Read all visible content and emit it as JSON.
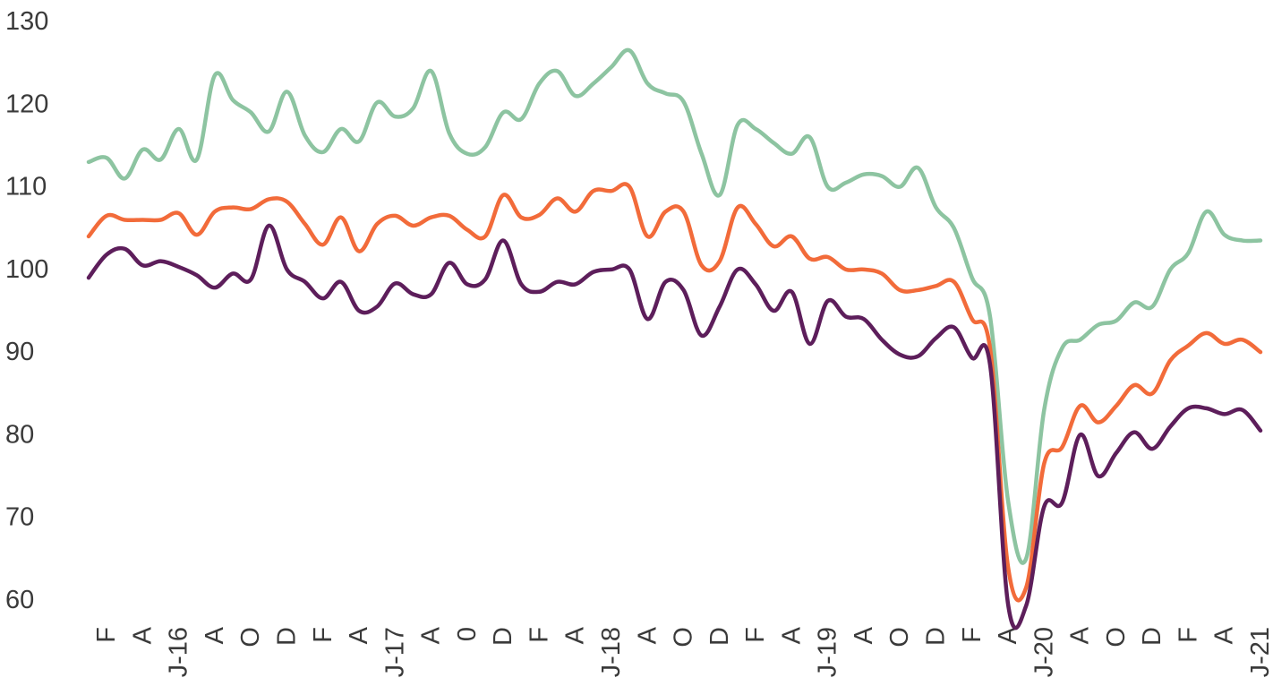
{
  "chart_data": {
    "type": "line",
    "title": "",
    "xlabel": "",
    "ylabel": "",
    "ylim": [
      60,
      130
    ],
    "yticks": [
      60,
      70,
      80,
      90,
      100,
      110,
      120,
      130
    ],
    "grid": false,
    "legend": "none",
    "x_tick_labels": [
      "F",
      "A",
      "J-16",
      "A",
      "O",
      "D",
      "F",
      "A",
      "J-17",
      "A",
      "0",
      "D",
      "F",
      "A",
      "J-18",
      "A",
      "O",
      "D",
      "F",
      "A",
      "J-19",
      "A",
      "O",
      "D",
      "F",
      "A",
      "J-20",
      "A",
      "O",
      "D",
      "F",
      "A",
      "J-21"
    ],
    "x_tick_months": [
      1,
      3,
      5,
      7,
      9,
      11,
      13,
      15,
      17,
      19,
      21,
      23,
      25,
      27,
      29,
      31,
      33,
      35,
      37,
      39,
      41,
      43,
      45,
      47,
      49,
      51,
      53,
      55,
      57,
      59,
      61,
      63,
      65
    ],
    "x_months": [
      0,
      1,
      2,
      3,
      4,
      5,
      6,
      7,
      8,
      9,
      10,
      11,
      12,
      13,
      14,
      15,
      16,
      17,
      18,
      19,
      20,
      21,
      22,
      23,
      24,
      25,
      26,
      27,
      28,
      29,
      30,
      31,
      32,
      33,
      34,
      35,
      36,
      37,
      38,
      39,
      40,
      41,
      42,
      43,
      44,
      45,
      46,
      47,
      48,
      49,
      50,
      51,
      52,
      53,
      54,
      55,
      56,
      57,
      58,
      59,
      60,
      61,
      62,
      63,
      64,
      65
    ],
    "series": [
      {
        "color": "#8dc4a1",
        "values": [
          113,
          113.5,
          111,
          114.5,
          113.3,
          117,
          113.3,
          123.5,
          120.5,
          119,
          116.7,
          121.5,
          116.2,
          114.2,
          117,
          115.5,
          120.2,
          118.5,
          119.5,
          124,
          116.5,
          114,
          114.8,
          119,
          118.2,
          122.5,
          124,
          121,
          122.5,
          124.5,
          126.5,
          122.5,
          121.3,
          120.3,
          114,
          109,
          117.5,
          117,
          115.3,
          114,
          116,
          110,
          110.5,
          111.5,
          111.3,
          110,
          112.3,
          107.5,
          105,
          99,
          94.3,
          72,
          65,
          83,
          90.5,
          91.5,
          93.3,
          93.8,
          96,
          95.5,
          100,
          102,
          107,
          104.2,
          103.5,
          103.5
        ]
      },
      {
        "color": "#f26b3a",
        "values": [
          104,
          106.5,
          106,
          106,
          106,
          106.8,
          104.2,
          107,
          107.5,
          107.3,
          108.5,
          108.2,
          105.5,
          103,
          106.3,
          102.2,
          105.5,
          106.5,
          105.3,
          106.3,
          106.5,
          104.8,
          104,
          109,
          106.3,
          106.6,
          108.6,
          107,
          109.5,
          109.5,
          110,
          104,
          107,
          107,
          100.5,
          101,
          107.5,
          105.5,
          102.8,
          104,
          101.3,
          101.5,
          100,
          100,
          99.5,
          97.5,
          97.5,
          98,
          98.5,
          94,
          90.5,
          64,
          61.5,
          76.5,
          78.5,
          83.5,
          81.5,
          83.5,
          86,
          85,
          89,
          90.8,
          92.3,
          91,
          91.5,
          90
        ]
      },
      {
        "color": "#5d1e5b",
        "values": [
          99,
          101.8,
          102.5,
          100.5,
          101,
          100.3,
          99.3,
          97.8,
          99.5,
          98.8,
          105.3,
          100,
          98.5,
          96.5,
          98.5,
          95,
          95.5,
          98.3,
          97,
          97,
          100.8,
          98.2,
          98.8,
          103.5,
          98.2,
          97.3,
          98.5,
          98.2,
          99.7,
          100,
          100,
          94,
          98.5,
          97.5,
          92,
          95.5,
          100,
          98.2,
          95,
          97.3,
          91,
          96.2,
          94.3,
          94,
          91.5,
          89.7,
          89.5,
          91.7,
          93,
          89.3,
          88.5,
          59.5,
          59.3,
          71.3,
          71.8,
          80,
          75,
          77.8,
          80.3,
          78.3,
          81,
          83.2,
          83.2,
          82.5,
          83,
          80.5
        ]
      }
    ]
  }
}
